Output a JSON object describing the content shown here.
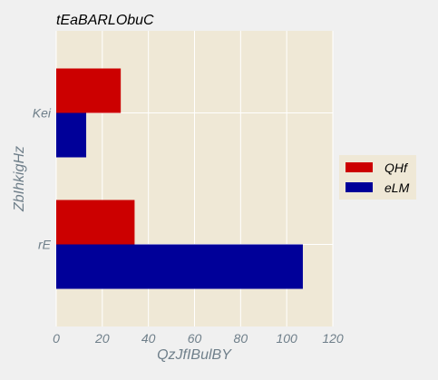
{
  "chart_data": {
    "type": "bar",
    "orientation": "horizontal",
    "title": "tEaBARLObuC",
    "xlabel": "QzJfIBulBY",
    "ylabel": "ZbIhkigHz",
    "categories": [
      "Kei",
      "rE"
    ],
    "series": [
      {
        "name": "QHf",
        "values": [
          28,
          34
        ],
        "color": "#cc0000"
      },
      {
        "name": "eLM",
        "values": [
          13,
          107
        ],
        "color": "#000099"
      }
    ],
    "xlim": [
      0,
      120
    ],
    "xticks": [
      0,
      20,
      40,
      60,
      80,
      100,
      120
    ],
    "grid": true,
    "legend": "center-right"
  },
  "colors": {
    "background": "#f0f0f0",
    "plot_background": "#efe8d6",
    "grid": "#ffffff",
    "text": "#6f7f8a",
    "title": "#000000"
  }
}
